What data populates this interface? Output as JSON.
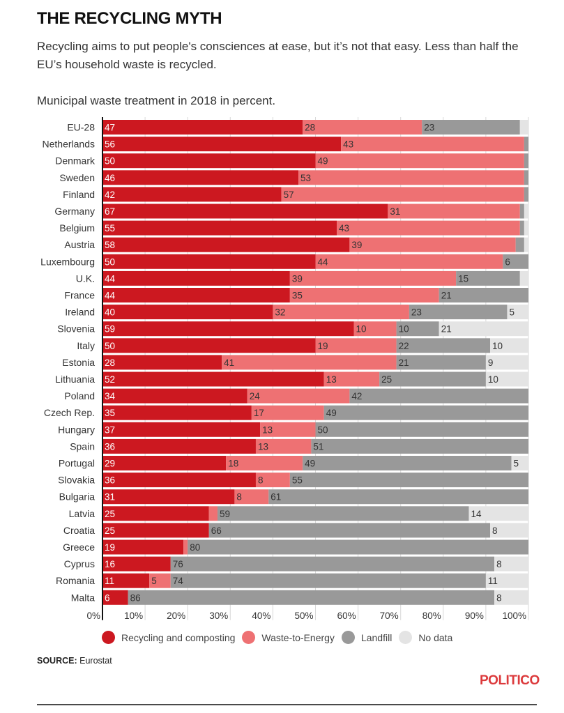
{
  "header": {
    "title": "THE RECYCLING MYTH",
    "subtitle": "Recycling aims to put people's consciences at ease, but it’s not that easy. Less than half the EU’s household waste is recycled.",
    "caption": "Municipal waste treatment in 2018 in percent."
  },
  "colors": {
    "recycling": "#cc1820",
    "energy": "#ee7173",
    "landfill": "#999999",
    "nodata": "#e4e4e4",
    "logo": "#dc3a3c"
  },
  "chart_data": {
    "type": "bar",
    "orientation": "horizontal-stacked",
    "title": "Municipal waste treatment in 2018 in percent.",
    "xlabel": "",
    "ylabel": "",
    "xlim": [
      0,
      100
    ],
    "x_ticks": [
      "0%",
      "10%",
      "20%",
      "30%",
      "40%",
      "50%",
      "60%",
      "70%",
      "80%",
      "90%",
      "100%"
    ],
    "grid": true,
    "legend_position": "bottom",
    "series_names": [
      "Recycling and composting",
      "Waste-to-Energy",
      "Landfill",
      "No data"
    ],
    "series_keys": [
      "recycling",
      "energy",
      "landfill",
      "nodata"
    ],
    "categories": [
      "EU-28",
      "Netherlands",
      "Denmark",
      "Sweden",
      "Finland",
      "Germany",
      "Belgium",
      "Austria",
      "Luxembourg",
      "U.K.",
      "France",
      "Ireland",
      "Slovenia",
      "Italy",
      "Estonia",
      "Lithuania",
      "Poland",
      "Czech Rep.",
      "Hungary",
      "Spain",
      "Portugal",
      "Slovakia",
      "Bulgaria",
      "Latvia",
      "Croatia",
      "Greece",
      "Cyprus",
      "Romania",
      "Malta"
    ],
    "rows": [
      {
        "name": "EU-28",
        "values": [
          47,
          28,
          23,
          2
        ],
        "labels": [
          "47",
          "28",
          "23",
          ""
        ]
      },
      {
        "name": "Netherlands",
        "values": [
          56,
          43,
          1,
          0
        ],
        "labels": [
          "56",
          "43",
          "",
          ""
        ]
      },
      {
        "name": "Denmark",
        "values": [
          50,
          49,
          1,
          0
        ],
        "labels": [
          "50",
          "49",
          "",
          ""
        ]
      },
      {
        "name": "Sweden",
        "values": [
          46,
          53,
          1,
          0
        ],
        "labels": [
          "46",
          "53",
          "",
          ""
        ]
      },
      {
        "name": "Finland",
        "values": [
          42,
          57,
          1,
          0
        ],
        "labels": [
          "42",
          "57",
          "",
          ""
        ]
      },
      {
        "name": "Germany",
        "values": [
          67,
          31,
          1,
          1
        ],
        "labels": [
          "67",
          "31",
          "",
          ""
        ]
      },
      {
        "name": "Belgium",
        "values": [
          55,
          43,
          1,
          1
        ],
        "labels": [
          "55",
          "43",
          "",
          ""
        ]
      },
      {
        "name": "Austria",
        "values": [
          58,
          39,
          2,
          1
        ],
        "labels": [
          "58",
          "39",
          "",
          ""
        ]
      },
      {
        "name": "Luxembourg",
        "values": [
          50,
          44,
          6,
          0
        ],
        "labels": [
          "50",
          "44",
          "6",
          ""
        ]
      },
      {
        "name": "U.K.",
        "values": [
          44,
          39,
          15,
          2
        ],
        "labels": [
          "44",
          "39",
          "15",
          ""
        ]
      },
      {
        "name": "France",
        "values": [
          44,
          35,
          21,
          0
        ],
        "labels": [
          "44",
          "35",
          "21",
          ""
        ]
      },
      {
        "name": "Ireland",
        "values": [
          40,
          32,
          23,
          5
        ],
        "labels": [
          "40",
          "32",
          "23",
          "5"
        ]
      },
      {
        "name": "Slovenia",
        "values": [
          59,
          10,
          10,
          21
        ],
        "labels": [
          "59",
          "10",
          "10",
          "21"
        ]
      },
      {
        "name": "Italy",
        "values": [
          50,
          19,
          22,
          10
        ],
        "labels": [
          "50",
          "19",
          "22",
          "10"
        ]
      },
      {
        "name": "Estonia",
        "values": [
          28,
          41,
          21,
          9
        ],
        "labels": [
          "28",
          "41",
          "21",
          "9"
        ]
      },
      {
        "name": "Lithuania",
        "values": [
          52,
          13,
          25,
          10
        ],
        "labels": [
          "52",
          "13",
          "25",
          "10"
        ]
      },
      {
        "name": "Poland",
        "values": [
          34,
          24,
          42,
          0
        ],
        "labels": [
          "34",
          "24",
          "42",
          ""
        ]
      },
      {
        "name": "Czech Rep.",
        "values": [
          35,
          17,
          49,
          0
        ],
        "labels": [
          "35",
          "17",
          "49",
          ""
        ]
      },
      {
        "name": "Hungary",
        "values": [
          37,
          13,
          50,
          0
        ],
        "labels": [
          "37",
          "13",
          "50",
          ""
        ]
      },
      {
        "name": "Spain",
        "values": [
          36,
          13,
          51,
          0
        ],
        "labels": [
          "36",
          "13",
          "51",
          ""
        ]
      },
      {
        "name": "Portugal",
        "values": [
          29,
          18,
          49,
          5
        ],
        "labels": [
          "29",
          "18",
          "49",
          "5"
        ]
      },
      {
        "name": "Slovakia",
        "values": [
          36,
          8,
          55,
          0
        ],
        "labels": [
          "36",
          "8",
          "55",
          ""
        ]
      },
      {
        "name": "Bulgaria",
        "values": [
          31,
          8,
          61,
          0
        ],
        "labels": [
          "31",
          "8",
          "61",
          ""
        ]
      },
      {
        "name": "Latvia",
        "values": [
          25,
          2,
          59,
          14
        ],
        "labels": [
          "25",
          "",
          "59",
          "14"
        ]
      },
      {
        "name": "Croatia",
        "values": [
          25,
          0,
          66,
          8
        ],
        "labels": [
          "25",
          "",
          "66",
          "8"
        ]
      },
      {
        "name": "Greece",
        "values": [
          19,
          1,
          80,
          0
        ],
        "labels": [
          "19",
          "",
          "80",
          ""
        ]
      },
      {
        "name": "Cyprus",
        "values": [
          16,
          0,
          76,
          8
        ],
        "labels": [
          "16",
          "",
          "76",
          "8"
        ]
      },
      {
        "name": "Romania",
        "values": [
          11,
          5,
          74,
          11
        ],
        "labels": [
          "11",
          "5",
          "74",
          "11"
        ]
      },
      {
        "name": "Malta",
        "values": [
          6,
          0,
          86,
          8
        ],
        "labels": [
          "6",
          "",
          "86",
          "8"
        ]
      }
    ]
  },
  "footer": {
    "source_label": "SOURCE:",
    "source_value": "Eurostat",
    "logo": "POLITICO"
  }
}
